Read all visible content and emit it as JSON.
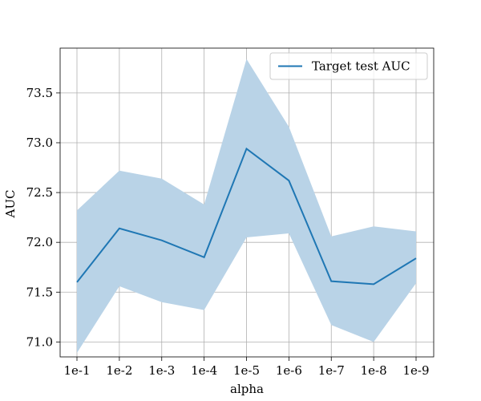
{
  "chart_data": {
    "type": "line",
    "xlabel": "alpha",
    "ylabel": "AUC",
    "categories": [
      "1e-1",
      "1e-2",
      "1e-3",
      "1e-4",
      "1e-5",
      "1e-6",
      "1e-7",
      "1e-8",
      "1e-9"
    ],
    "ylim": [
      70.85,
      73.95
    ],
    "yticks": [
      71.0,
      71.5,
      72.0,
      72.5,
      73.0,
      73.5
    ],
    "ytick_labels": [
      "71.0",
      "71.5",
      "72.0",
      "72.5",
      "73.0",
      "73.5"
    ],
    "grid": true,
    "legend_position": "top-right",
    "series": [
      {
        "name": "Target test AUC",
        "color": "#1f77b4",
        "values": [
          71.6,
          72.14,
          72.02,
          71.85,
          72.94,
          72.62,
          71.61,
          71.58,
          71.84
        ],
        "band_upper": [
          72.32,
          72.72,
          72.64,
          72.38,
          73.84,
          73.16,
          72.06,
          72.16,
          72.11
        ],
        "band_lower": [
          70.89,
          71.56,
          71.4,
          71.32,
          72.05,
          72.09,
          71.17,
          71.0,
          71.59
        ],
        "band_color": "#b9d3e7"
      }
    ]
  }
}
